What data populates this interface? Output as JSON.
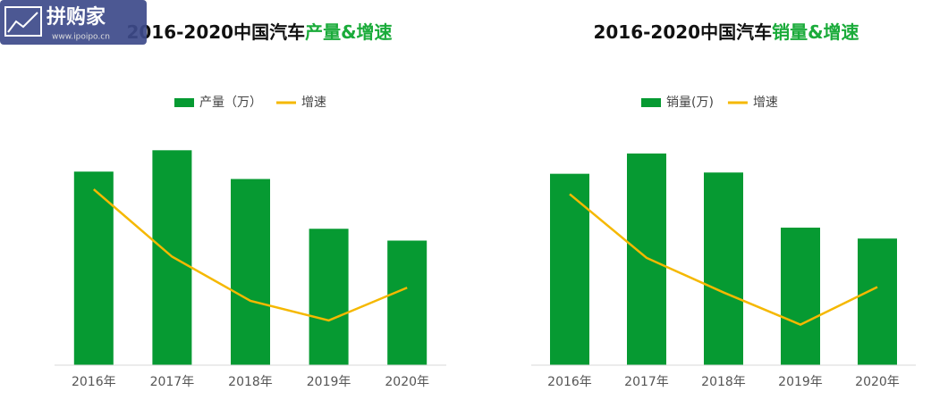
{
  "chart_data": [
    {
      "type": "bar",
      "title": "2016-2020中国汽车",
      "title_highlight": "产量&增速",
      "categories": [
        "2016年",
        "2017年",
        "2018年",
        "2019年",
        "2020年"
      ],
      "series": [
        {
          "name": "产量（万）",
          "color": "#069a32",
          "values": [
            2811.9,
            2901.5,
            2780.9,
            2572.1,
            2522.5
          ]
        },
        {
          "name": "增速",
          "color": "#f5b800",
          "axis": "y2",
          "type": "line",
          "values": [
            14.5,
            3.2,
            -4.2,
            -7.5,
            -2.0
          ]
        }
      ],
      "ylim": [
        2000,
        3000
      ],
      "y2lim": [
        -15,
        25
      ],
      "grid": false
    },
    {
      "type": "bar",
      "title": "2016-2020中国汽车",
      "title_highlight": "销量&增速",
      "categories": [
        "2016年",
        "2017年",
        "2018年",
        "2019年",
        "2020年"
      ],
      "series": [
        {
          "name": "销量(万)",
          "color": "#069a32",
          "values": [
            2802.8,
            2887.9,
            2808.1,
            2576.9,
            2531.1
          ]
        },
        {
          "name": "增速",
          "color": "#f5b800",
          "axis": "y2",
          "type": "line",
          "values": [
            13.7,
            3.0,
            -2.8,
            -8.2,
            -1.9
          ]
        }
      ],
      "ylim": [
        2000,
        3000
      ],
      "y2lim": [
        -15,
        25
      ],
      "grid": false
    }
  ],
  "watermark": {
    "text": "拼购家",
    "url": "www.ipoipo.cn"
  }
}
